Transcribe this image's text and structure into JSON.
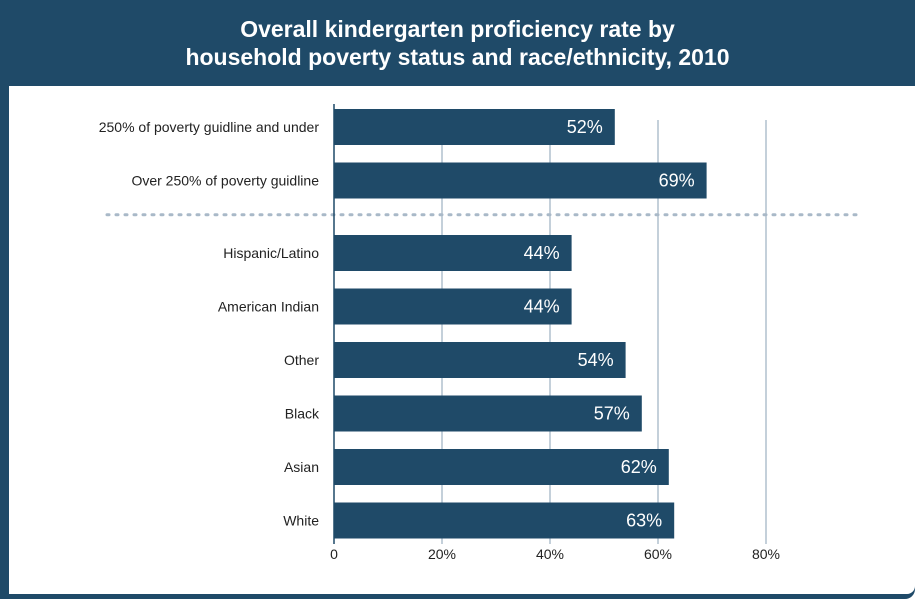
{
  "chart_data": {
    "type": "bar",
    "orientation": "horizontal",
    "title_line1": "Overall kindergarten proficiency rate by",
    "title_line2": "household poverty status and race/ethnicity, 2010",
    "categories": [
      "250% of poverty guidline and under",
      "Over 250% of poverty guidline",
      "Hispanic/Latino",
      "American Indian",
      "Other",
      "Black",
      "Asian",
      "White"
    ],
    "values": [
      52,
      69,
      44,
      44,
      54,
      57,
      62,
      63
    ],
    "value_labels": [
      "52%",
      "69%",
      "44%",
      "44%",
      "54%",
      "57%",
      "62%",
      "63%"
    ],
    "group_separator_after_index": 1,
    "xlim": [
      0,
      80
    ],
    "xticks": [
      0,
      20,
      40,
      60,
      80
    ],
    "xtick_labels": [
      "0",
      "20%",
      "40%",
      "60%",
      "80%"
    ],
    "grid": true,
    "bar_color": "#1f4a68"
  }
}
